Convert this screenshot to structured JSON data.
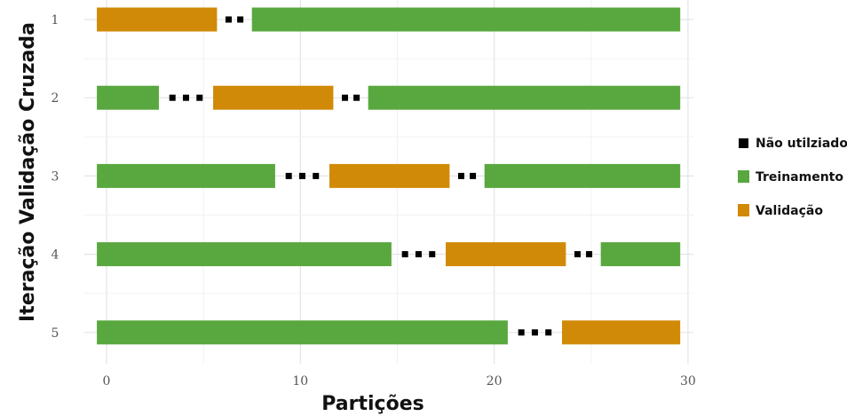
{
  "chart_data": {
    "type": "bar",
    "xlabel": "Partições",
    "ylabel": "Iteração Validação Cruzada",
    "xlim": [
      -0.6,
      30.6
    ],
    "x_ticks": [
      "0",
      "10",
      "20",
      "30"
    ],
    "x_tick_values": [
      0,
      10,
      20,
      30
    ],
    "y_categories": [
      "1",
      "2",
      "3",
      "4",
      "5"
    ],
    "grid": true,
    "legend_position": "right",
    "legend": [
      {
        "key": "nao",
        "label": "Não utilziado",
        "color": "#000000"
      },
      {
        "key": "treino",
        "label": "Treinamento",
        "color": "#59a83f"
      },
      {
        "key": "valid",
        "label": "Validação",
        "color": "#d18a07"
      }
    ],
    "rows": [
      {
        "iteration": "1",
        "segments": [
          {
            "kind": "valid",
            "start": -0.5,
            "end": 5.7
          },
          {
            "kind": "nao",
            "start": 5.7,
            "end": 7.5
          },
          {
            "kind": "treino",
            "start": 7.5,
            "end": 29.6
          }
        ]
      },
      {
        "iteration": "2",
        "segments": [
          {
            "kind": "treino",
            "start": -0.5,
            "end": 2.7
          },
          {
            "kind": "nao",
            "start": 2.7,
            "end": 5.5
          },
          {
            "kind": "valid",
            "start": 5.5,
            "end": 11.7
          },
          {
            "kind": "nao",
            "start": 11.7,
            "end": 13.5
          },
          {
            "kind": "treino",
            "start": 13.5,
            "end": 29.6
          }
        ]
      },
      {
        "iteration": "3",
        "segments": [
          {
            "kind": "treino",
            "start": -0.5,
            "end": 8.7
          },
          {
            "kind": "nao",
            "start": 8.7,
            "end": 11.5
          },
          {
            "kind": "valid",
            "start": 11.5,
            "end": 17.7
          },
          {
            "kind": "nao",
            "start": 17.7,
            "end": 19.5
          },
          {
            "kind": "treino",
            "start": 19.5,
            "end": 29.6
          }
        ]
      },
      {
        "iteration": "4",
        "segments": [
          {
            "kind": "treino",
            "start": -0.5,
            "end": 14.7
          },
          {
            "kind": "nao",
            "start": 14.7,
            "end": 17.5
          },
          {
            "kind": "valid",
            "start": 17.5,
            "end": 23.7
          },
          {
            "kind": "nao",
            "start": 23.7,
            "end": 25.5
          },
          {
            "kind": "treino",
            "start": 25.5,
            "end": 29.6
          }
        ]
      },
      {
        "iteration": "5",
        "segments": [
          {
            "kind": "treino",
            "start": -0.5,
            "end": 20.7
          },
          {
            "kind": "nao",
            "start": 20.7,
            "end": 23.5
          },
          {
            "kind": "valid",
            "start": 23.5,
            "end": 29.6
          }
        ]
      }
    ]
  }
}
